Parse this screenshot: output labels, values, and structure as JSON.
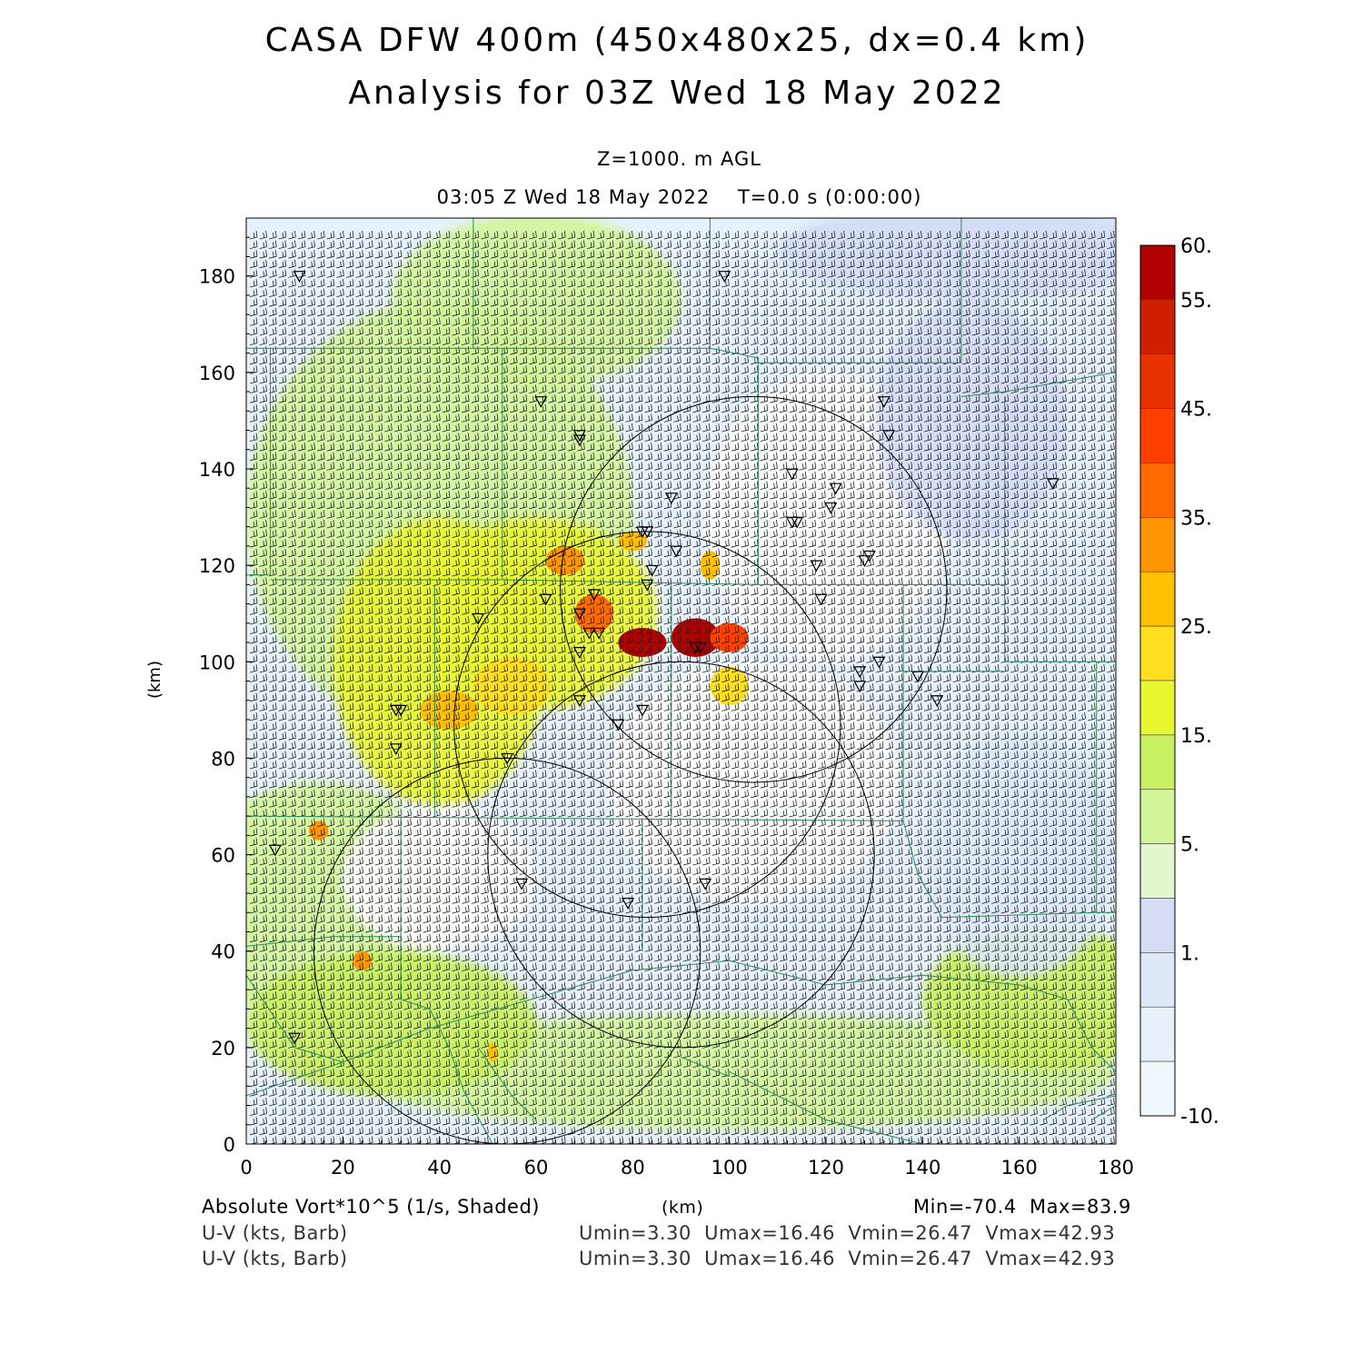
{
  "header": {
    "title_line1": "CASA DFW 400m (450x480x25, dx=0.4 km)",
    "title_line2": "Analysis for 03Z Wed 18 May 2022",
    "level": "Z=1000. m AGL",
    "valid_time": "03:05 Z Wed 18 May 2022    T=0.0 s (0:00:00)"
  },
  "axes": {
    "x_label": "(km)",
    "y_label": "(km)",
    "x_range": [
      0,
      180
    ],
    "y_range": [
      0,
      192
    ],
    "x_ticks": [
      "0",
      "20",
      "40",
      "60",
      "80",
      "100",
      "120",
      "140",
      "160",
      "180"
    ],
    "y_ticks": [
      "0",
      "20",
      "40",
      "60",
      "80",
      "100",
      "120",
      "140",
      "160",
      "180"
    ]
  },
  "colorbar": {
    "labels": [
      "60.",
      "55.",
      "45.",
      "35.",
      "25.",
      "15.",
      "5.",
      "1.",
      "-10."
    ],
    "colors": [
      "#b00000",
      "#d01f00",
      "#e83300",
      "#ff4000",
      "#ff6a00",
      "#ff9500",
      "#ffc000",
      "#ffe020",
      "#e8f830",
      "#c8f060",
      "#d2f59a",
      "#e2f8cc",
      "#d4dcf6",
      "#dde9f8",
      "#e6f1fb",
      "#eef8fd"
    ]
  },
  "footer": {
    "field1": "Absolute Vort*10^5 (1/s, Shaded)",
    "units": "(km)",
    "minmax": "Min=-70.4  Max=83.9",
    "barb1": "U-V (kts, Barb)",
    "barb1_stats": "Umin=3.30  Umax=16.46  Vmin=26.47  Vmax=42.93",
    "barb2": "U-V (kts, Barb)",
    "barb2_stats": "Umin=3.30  Umax=16.46  Vmin=26.47  Vmax=42.93"
  },
  "range_rings": [
    {
      "cx": 105,
      "cy": 115,
      "r": 40
    },
    {
      "cx": 83,
      "cy": 87,
      "r": 40
    },
    {
      "cx": 90,
      "cy": 60,
      "r": 40
    },
    {
      "cx": 54,
      "cy": 40,
      "r": 40
    }
  ],
  "stations": [
    [
      11,
      180
    ],
    [
      99,
      180
    ],
    [
      61,
      154
    ],
    [
      69,
      147
    ],
    [
      69,
      146
    ],
    [
      132,
      154
    ],
    [
      133,
      147
    ],
    [
      113,
      139
    ],
    [
      88,
      134
    ],
    [
      122,
      136
    ],
    [
      121,
      132
    ],
    [
      113,
      129
    ],
    [
      114,
      129
    ],
    [
      82,
      127
    ],
    [
      83,
      127
    ],
    [
      89,
      123
    ],
    [
      128,
      121
    ],
    [
      129,
      122
    ],
    [
      84,
      119
    ],
    [
      83,
      116
    ],
    [
      118,
      120
    ],
    [
      119,
      113
    ],
    [
      72,
      114
    ],
    [
      62,
      113
    ],
    [
      69,
      110
    ],
    [
      48,
      109
    ],
    [
      71,
      106
    ],
    [
      73,
      106
    ],
    [
      69,
      102
    ],
    [
      93,
      103
    ],
    [
      94,
      103
    ],
    [
      127,
      98
    ],
    [
      131,
      100
    ],
    [
      127,
      95
    ],
    [
      139,
      97
    ],
    [
      143,
      92
    ],
    [
      69,
      92
    ],
    [
      31,
      90
    ],
    [
      32,
      90
    ],
    [
      82,
      90
    ],
    [
      77,
      87
    ],
    [
      31,
      82
    ],
    [
      54,
      80
    ],
    [
      167,
      137
    ],
    [
      6,
      61
    ],
    [
      57,
      54
    ],
    [
      95,
      54
    ],
    [
      79,
      50
    ],
    [
      10,
      22
    ]
  ],
  "vorticity_blobs": [
    {
      "x": 93,
      "y": 105,
      "rx": 5,
      "ry": 4,
      "value": 60
    },
    {
      "x": 82,
      "y": 104,
      "rx": 5,
      "ry": 3,
      "value": 55
    },
    {
      "x": 100,
      "y": 105,
      "rx": 4,
      "ry": 3,
      "value": 40
    },
    {
      "x": 72,
      "y": 110,
      "rx": 4,
      "ry": 4,
      "value": 35
    },
    {
      "x": 66,
      "y": 121,
      "rx": 4,
      "ry": 3,
      "value": 30
    },
    {
      "x": 80,
      "y": 125,
      "rx": 3,
      "ry": 2,
      "value": 25
    },
    {
      "x": 96,
      "y": 120,
      "rx": 2,
      "ry": 3,
      "value": 25
    },
    {
      "x": 42,
      "y": 90,
      "rx": 6,
      "ry": 4,
      "value": 25
    },
    {
      "x": 55,
      "y": 95,
      "rx": 8,
      "ry": 6,
      "value": 20
    },
    {
      "x": 100,
      "y": 95,
      "rx": 4,
      "ry": 4,
      "value": 20
    },
    {
      "x": 15,
      "y": 65,
      "rx": 2,
      "ry": 2,
      "value": 30
    },
    {
      "x": 24,
      "y": 38,
      "rx": 2,
      "ry": 2,
      "value": 30
    },
    {
      "x": 51,
      "y": 19,
      "rx": 1,
      "ry": 2,
      "value": 25
    }
  ]
}
